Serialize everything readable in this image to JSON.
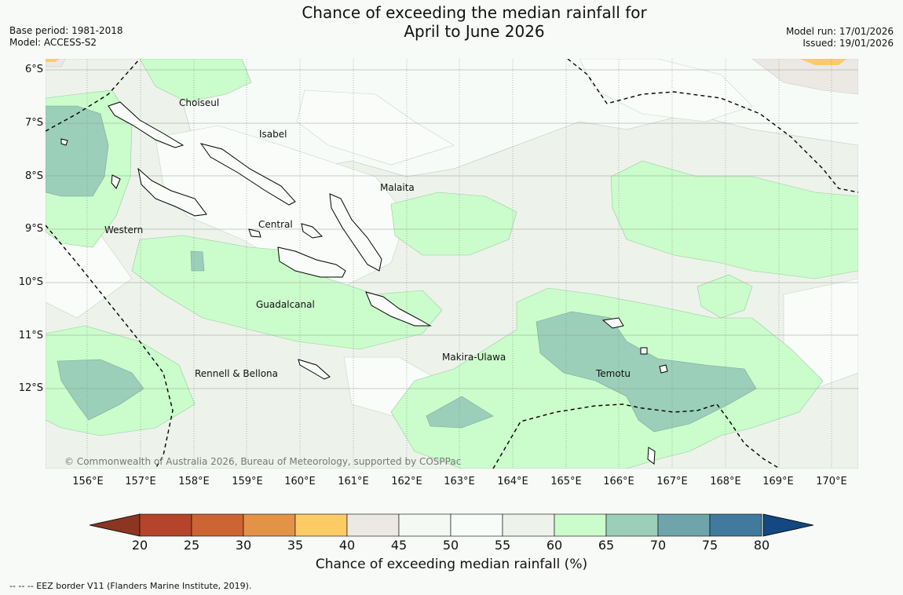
{
  "header": {
    "title_line1": "Chance of exceeding the median rainfall for",
    "title_line2": "April to June 2026",
    "base_period": "Base period: 1981-2018",
    "model": "Model: ACCESS-S2",
    "model_run": "Model run: 17/01/2026",
    "issued": "Issued: 19/01/2026"
  },
  "axes": {
    "lat_labels": [
      "6°S",
      "7°S",
      "8°S",
      "9°S",
      "10°S",
      "11°S",
      "12°S"
    ],
    "lon_labels": [
      "156°E",
      "157°E",
      "158°E",
      "159°E",
      "160°E",
      "161°E",
      "162°E",
      "163°E",
      "164°E",
      "165°E",
      "166°E",
      "167°E",
      "168°E",
      "169°E",
      "170°E"
    ]
  },
  "places": {
    "choiseul": "Choiseul",
    "isabel": "Isabel",
    "malaita": "Malaita",
    "western": "Western",
    "central": "Central",
    "guadalcanal": "Guadalcanal",
    "makira": "Makira-Ulawa",
    "rennell": "Rennell & Bellona",
    "temotu": "Temotu"
  },
  "copyright": "© Commonwealth of Australia 2026, Bureau of Meteorology, supported by COSPPac",
  "colorbar": {
    "title": "Chance of exceeding median rainfall (%)",
    "ticks": [
      "20",
      "25",
      "30",
      "35",
      "40",
      "45",
      "50",
      "55",
      "60",
      "65",
      "70",
      "75",
      "80"
    ],
    "colors": [
      "#b4452a",
      "#cc6433",
      "#e29347",
      "#fdcb66",
      "#ece9e4",
      "#f4f9f4",
      "#f8fcf8",
      "#edf3eb",
      "#cbfccb",
      "#9bcfb9",
      "#6fa5aa",
      "#417a9c"
    ],
    "under_color": "#8c3621",
    "over_color": "#134880"
  },
  "footer": {
    "eez_note": "--  --  -- EEZ border V11 (Flanders Marine Institute, 2019)."
  }
}
